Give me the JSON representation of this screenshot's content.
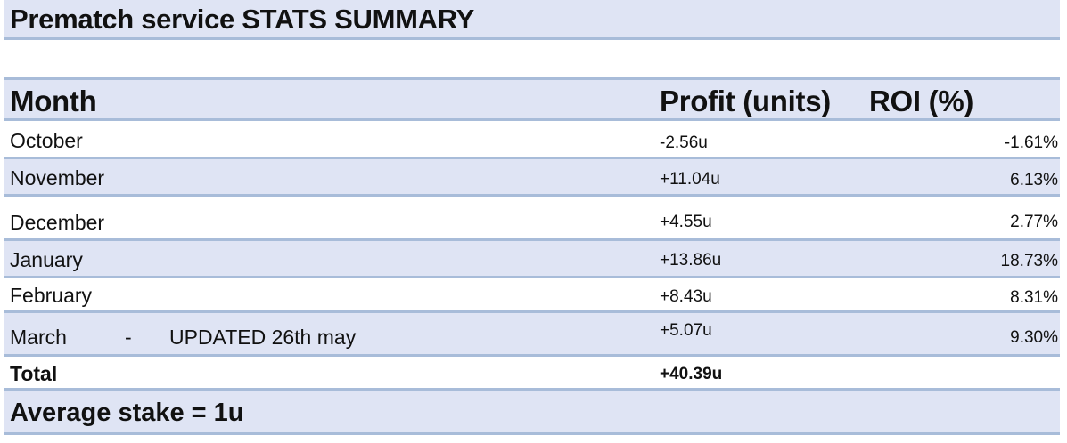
{
  "title": "Prematch service STATS SUMMARY",
  "headers": {
    "month": "Month",
    "profit": "Profit (units)",
    "roi": "ROI (%)"
  },
  "rows": [
    {
      "month": "October",
      "profit": "-2.56u",
      "roi": "-1.61%"
    },
    {
      "month": "November",
      "profit": "+11.04u",
      "roi": "6.13%"
    },
    {
      "month": "December",
      "profit": "+4.55u",
      "roi": "2.77%"
    },
    {
      "month": "January",
      "profit": "+13.86u",
      "roi": "18.73%"
    },
    {
      "month": "February",
      "profit": "+8.43u",
      "roi": "8.31%"
    },
    {
      "month": "March",
      "separator": "-",
      "note": "UPDATED 26th may",
      "profit": "+5.07u",
      "roi": "9.30%"
    }
  ],
  "total": {
    "label": "Total",
    "profit": "+40.39u"
  },
  "footer": "Average stake = 1u"
}
